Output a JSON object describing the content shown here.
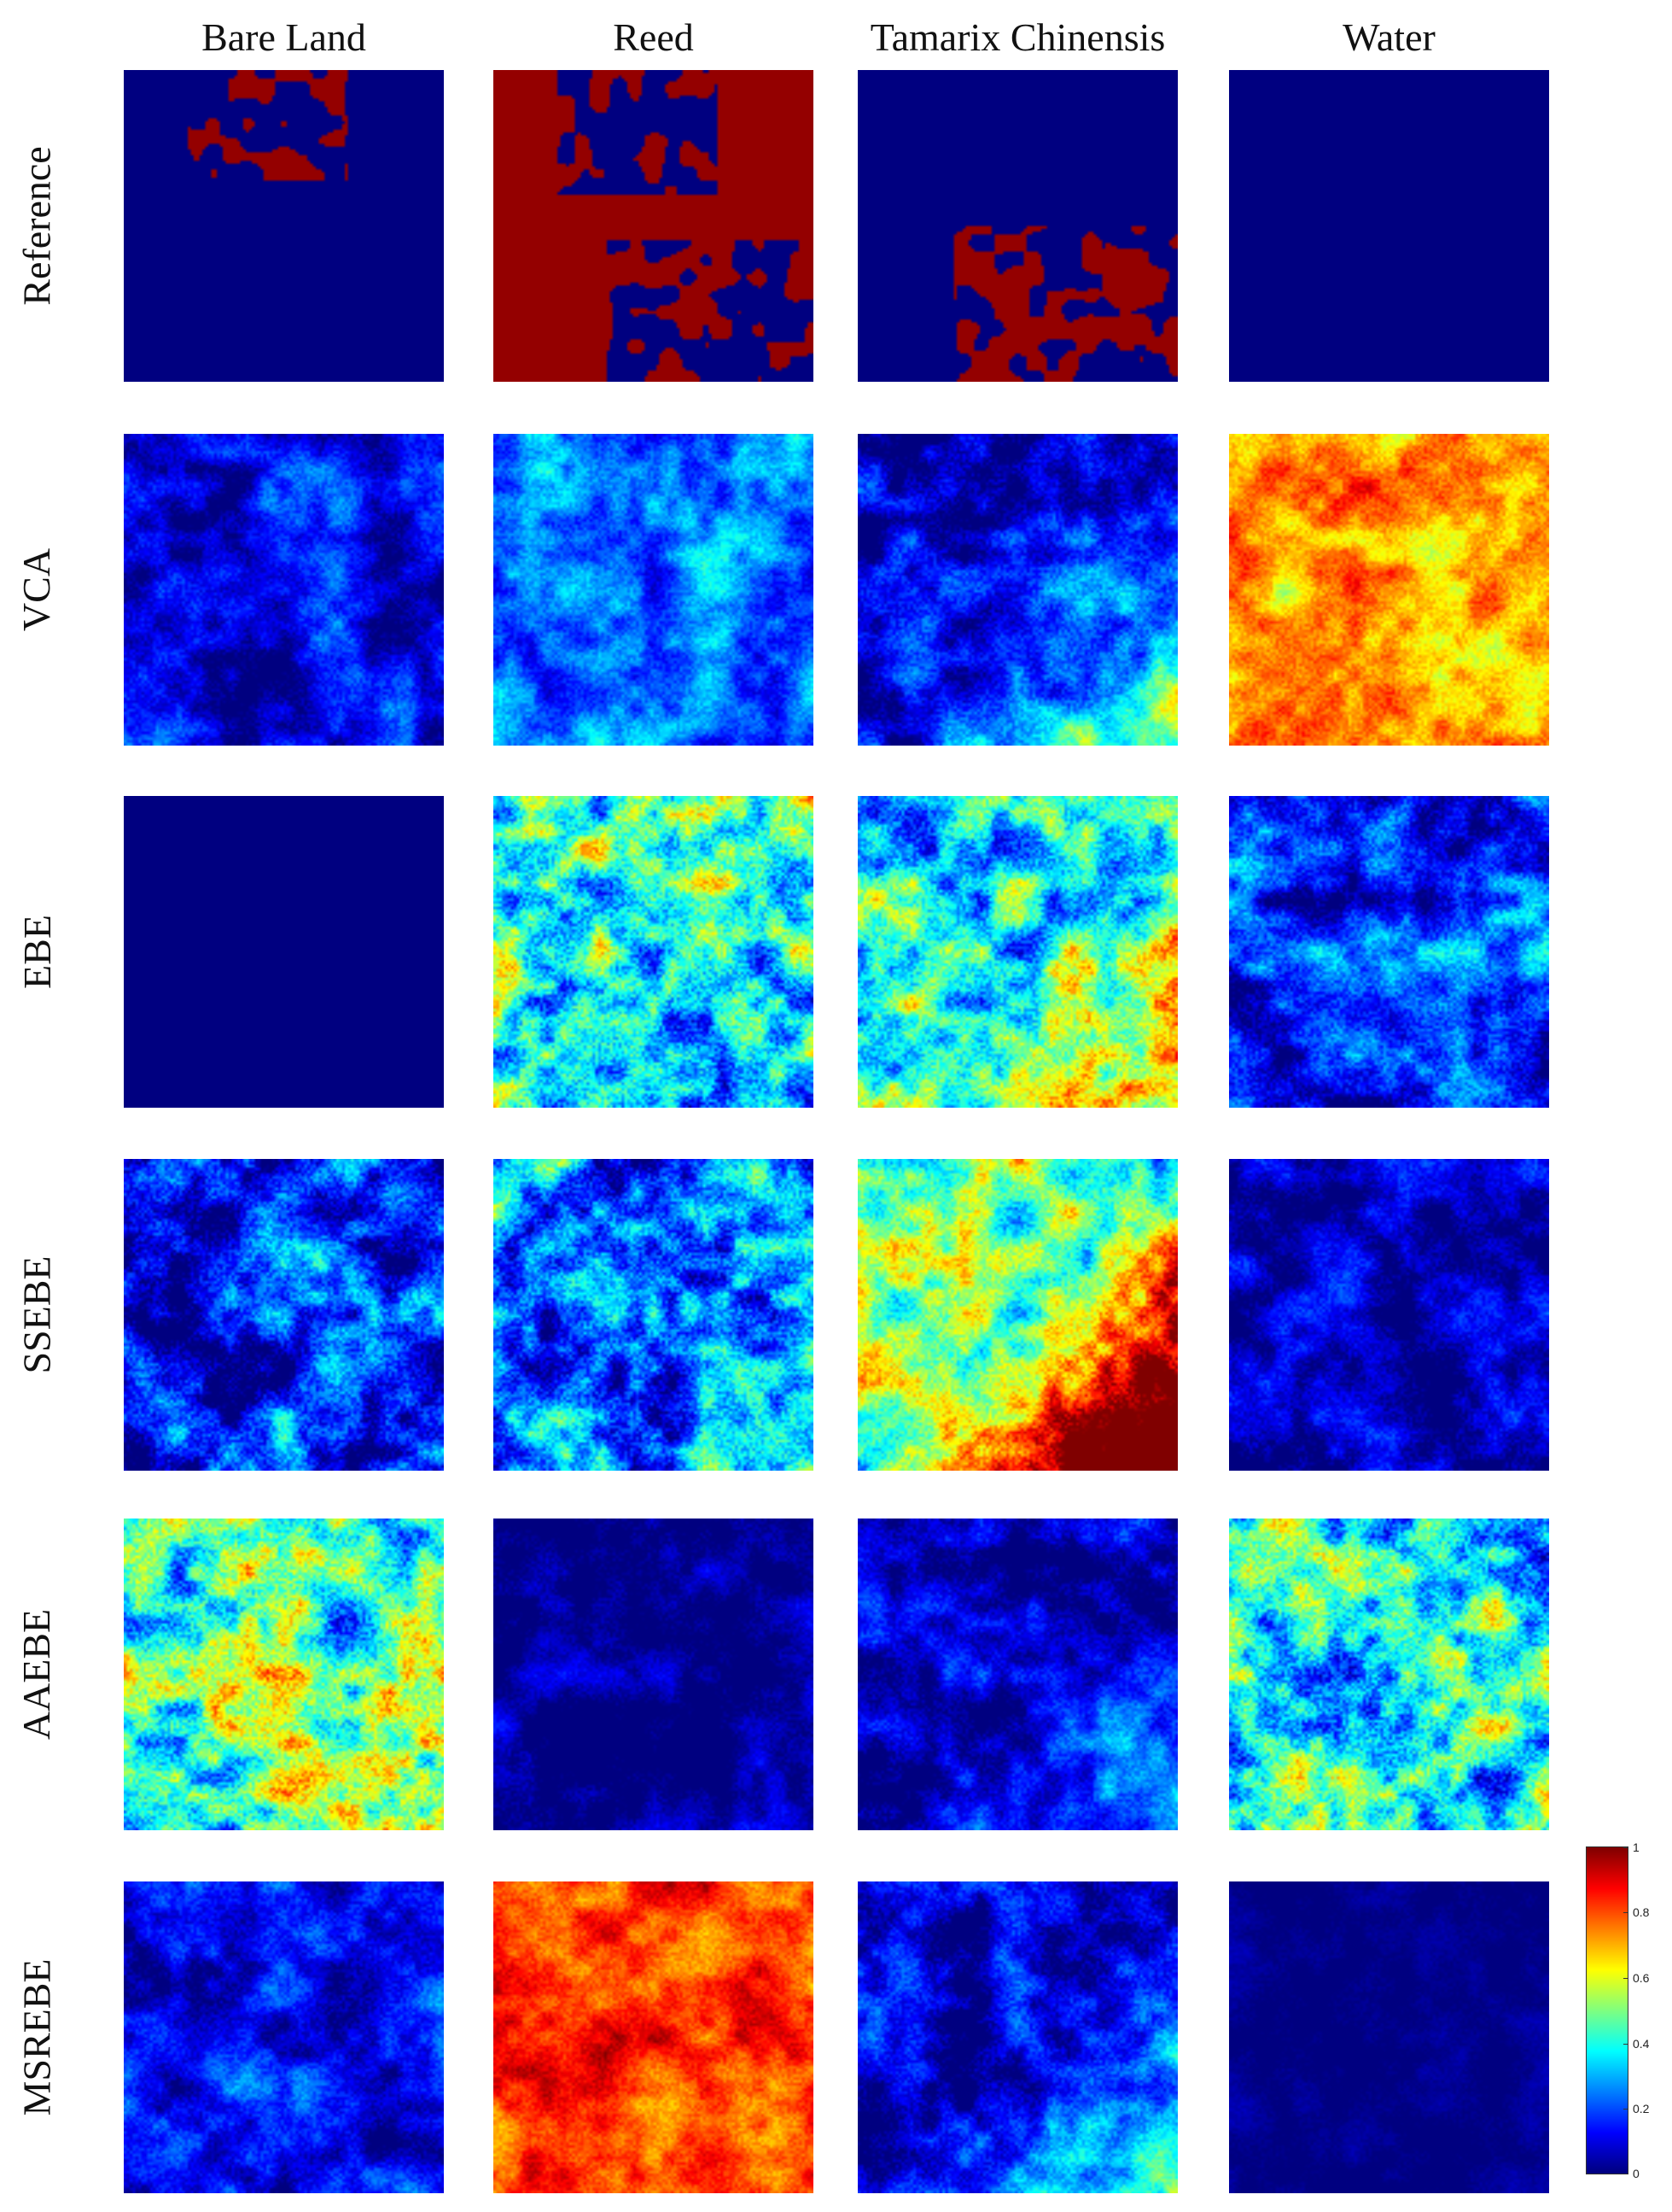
{
  "figure": {
    "columns": [
      {
        "key": "bare_land",
        "label": "Bare Land"
      },
      {
        "key": "reed",
        "label": "Reed"
      },
      {
        "key": "tamarix",
        "label": "Tamarix Chinensis"
      },
      {
        "key": "water",
        "label": "Water"
      }
    ],
    "rows": [
      {
        "key": "reference",
        "label": "Reference"
      },
      {
        "key": "vca",
        "label": "VCA"
      },
      {
        "key": "ebe",
        "label": "EBE"
      },
      {
        "key": "ssebe",
        "label": "SSEBE"
      },
      {
        "key": "aaebe",
        "label": "AAEBE"
      },
      {
        "key": "msrebe",
        "label": "MSREBE"
      }
    ],
    "colormap": "jet",
    "colorbar": {
      "ticks": [
        "1",
        "0.8",
        "0.6",
        "0.4",
        "0.2",
        "0"
      ],
      "range": [
        0,
        1
      ]
    }
  }
}
